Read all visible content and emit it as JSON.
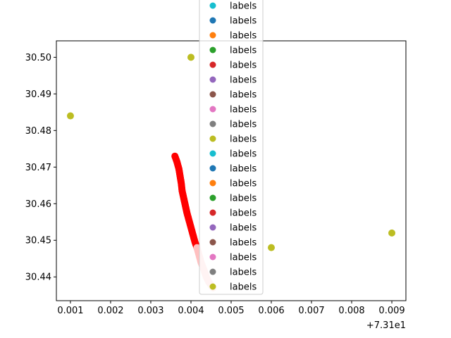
{
  "chart_data": {
    "type": "scatter",
    "title": "",
    "xlabel": "",
    "ylabel": "",
    "x_offset_label": "+7.31e1",
    "xlim": [
      0.00065,
      0.00935
    ],
    "ylim": [
      30.4335,
      30.5045
    ],
    "x_ticks": [
      0.001,
      0.002,
      0.003,
      0.004,
      0.005,
      0.006,
      0.007,
      0.008,
      0.009
    ],
    "y_ticks": [
      30.44,
      30.45,
      30.46,
      30.47,
      30.48,
      30.49,
      30.5
    ],
    "x_tick_labels": [
      "0.001",
      "0.002",
      "0.003",
      "0.004",
      "0.005",
      "0.006",
      "0.007",
      "0.008",
      "0.009"
    ],
    "y_tick_labels": [
      "30.44",
      "30.45",
      "30.46",
      "30.47",
      "30.48",
      "30.49",
      "30.50"
    ],
    "grid": false,
    "legend_placement": "upper-center",
    "legend": [
      {
        "label": "labels",
        "color": "#17becf"
      },
      {
        "label": "labels",
        "color": "#1f77b4"
      },
      {
        "label": "labels",
        "color": "#ff7f0e"
      },
      {
        "label": "labels",
        "color": "#2ca02c"
      },
      {
        "label": "labels",
        "color": "#d62728"
      },
      {
        "label": "labels",
        "color": "#9467bd"
      },
      {
        "label": "labels",
        "color": "#8c564b"
      },
      {
        "label": "labels",
        "color": "#e377c2"
      },
      {
        "label": "labels",
        "color": "#7f7f7f"
      },
      {
        "label": "labels",
        "color": "#bcbd22"
      },
      {
        "label": "labels",
        "color": "#17becf"
      },
      {
        "label": "labels",
        "color": "#1f77b4"
      },
      {
        "label": "labels",
        "color": "#ff7f0e"
      },
      {
        "label": "labels",
        "color": "#2ca02c"
      },
      {
        "label": "labels",
        "color": "#d62728"
      },
      {
        "label": "labels",
        "color": "#9467bd"
      },
      {
        "label": "labels",
        "color": "#8c564b"
      },
      {
        "label": "labels",
        "color": "#e377c2"
      },
      {
        "label": "labels",
        "color": "#7f7f7f"
      },
      {
        "label": "labels",
        "color": "#bcbd22"
      }
    ],
    "series": [
      {
        "color": "#bcbd22",
        "marker": "circle",
        "points": [
          [
            0.001,
            30.484
          ],
          [
            0.004,
            30.5
          ],
          [
            0.006,
            30.448
          ],
          [
            0.009,
            30.452
          ]
        ]
      },
      {
        "color": "#ff0000",
        "marker": "circle",
        "style": "dense-trail",
        "points": [
          [
            0.0036,
            30.473
          ],
          [
            0.00365,
            30.4715
          ],
          [
            0.0037,
            30.4695
          ],
          [
            0.00373,
            30.4675
          ],
          [
            0.00376,
            30.4655
          ],
          [
            0.00378,
            30.4635
          ],
          [
            0.00382,
            30.4615
          ],
          [
            0.00386,
            30.4595
          ],
          [
            0.0039,
            30.4575
          ],
          [
            0.00395,
            30.4555
          ],
          [
            0.004,
            30.4535
          ],
          [
            0.00405,
            30.4515
          ],
          [
            0.0041,
            30.4495
          ],
          [
            0.00415,
            30.448
          ]
        ]
      },
      {
        "color": "#ffc0c0",
        "marker": "circle",
        "style": "dense-trail",
        "points": [
          [
            0.00415,
            30.448
          ],
          [
            0.0042,
            30.446
          ],
          [
            0.00425,
            30.444
          ],
          [
            0.00432,
            30.442
          ],
          [
            0.00438,
            30.44
          ],
          [
            0.00445,
            30.4385
          ],
          [
            0.00455,
            30.437
          ]
        ]
      }
    ]
  }
}
